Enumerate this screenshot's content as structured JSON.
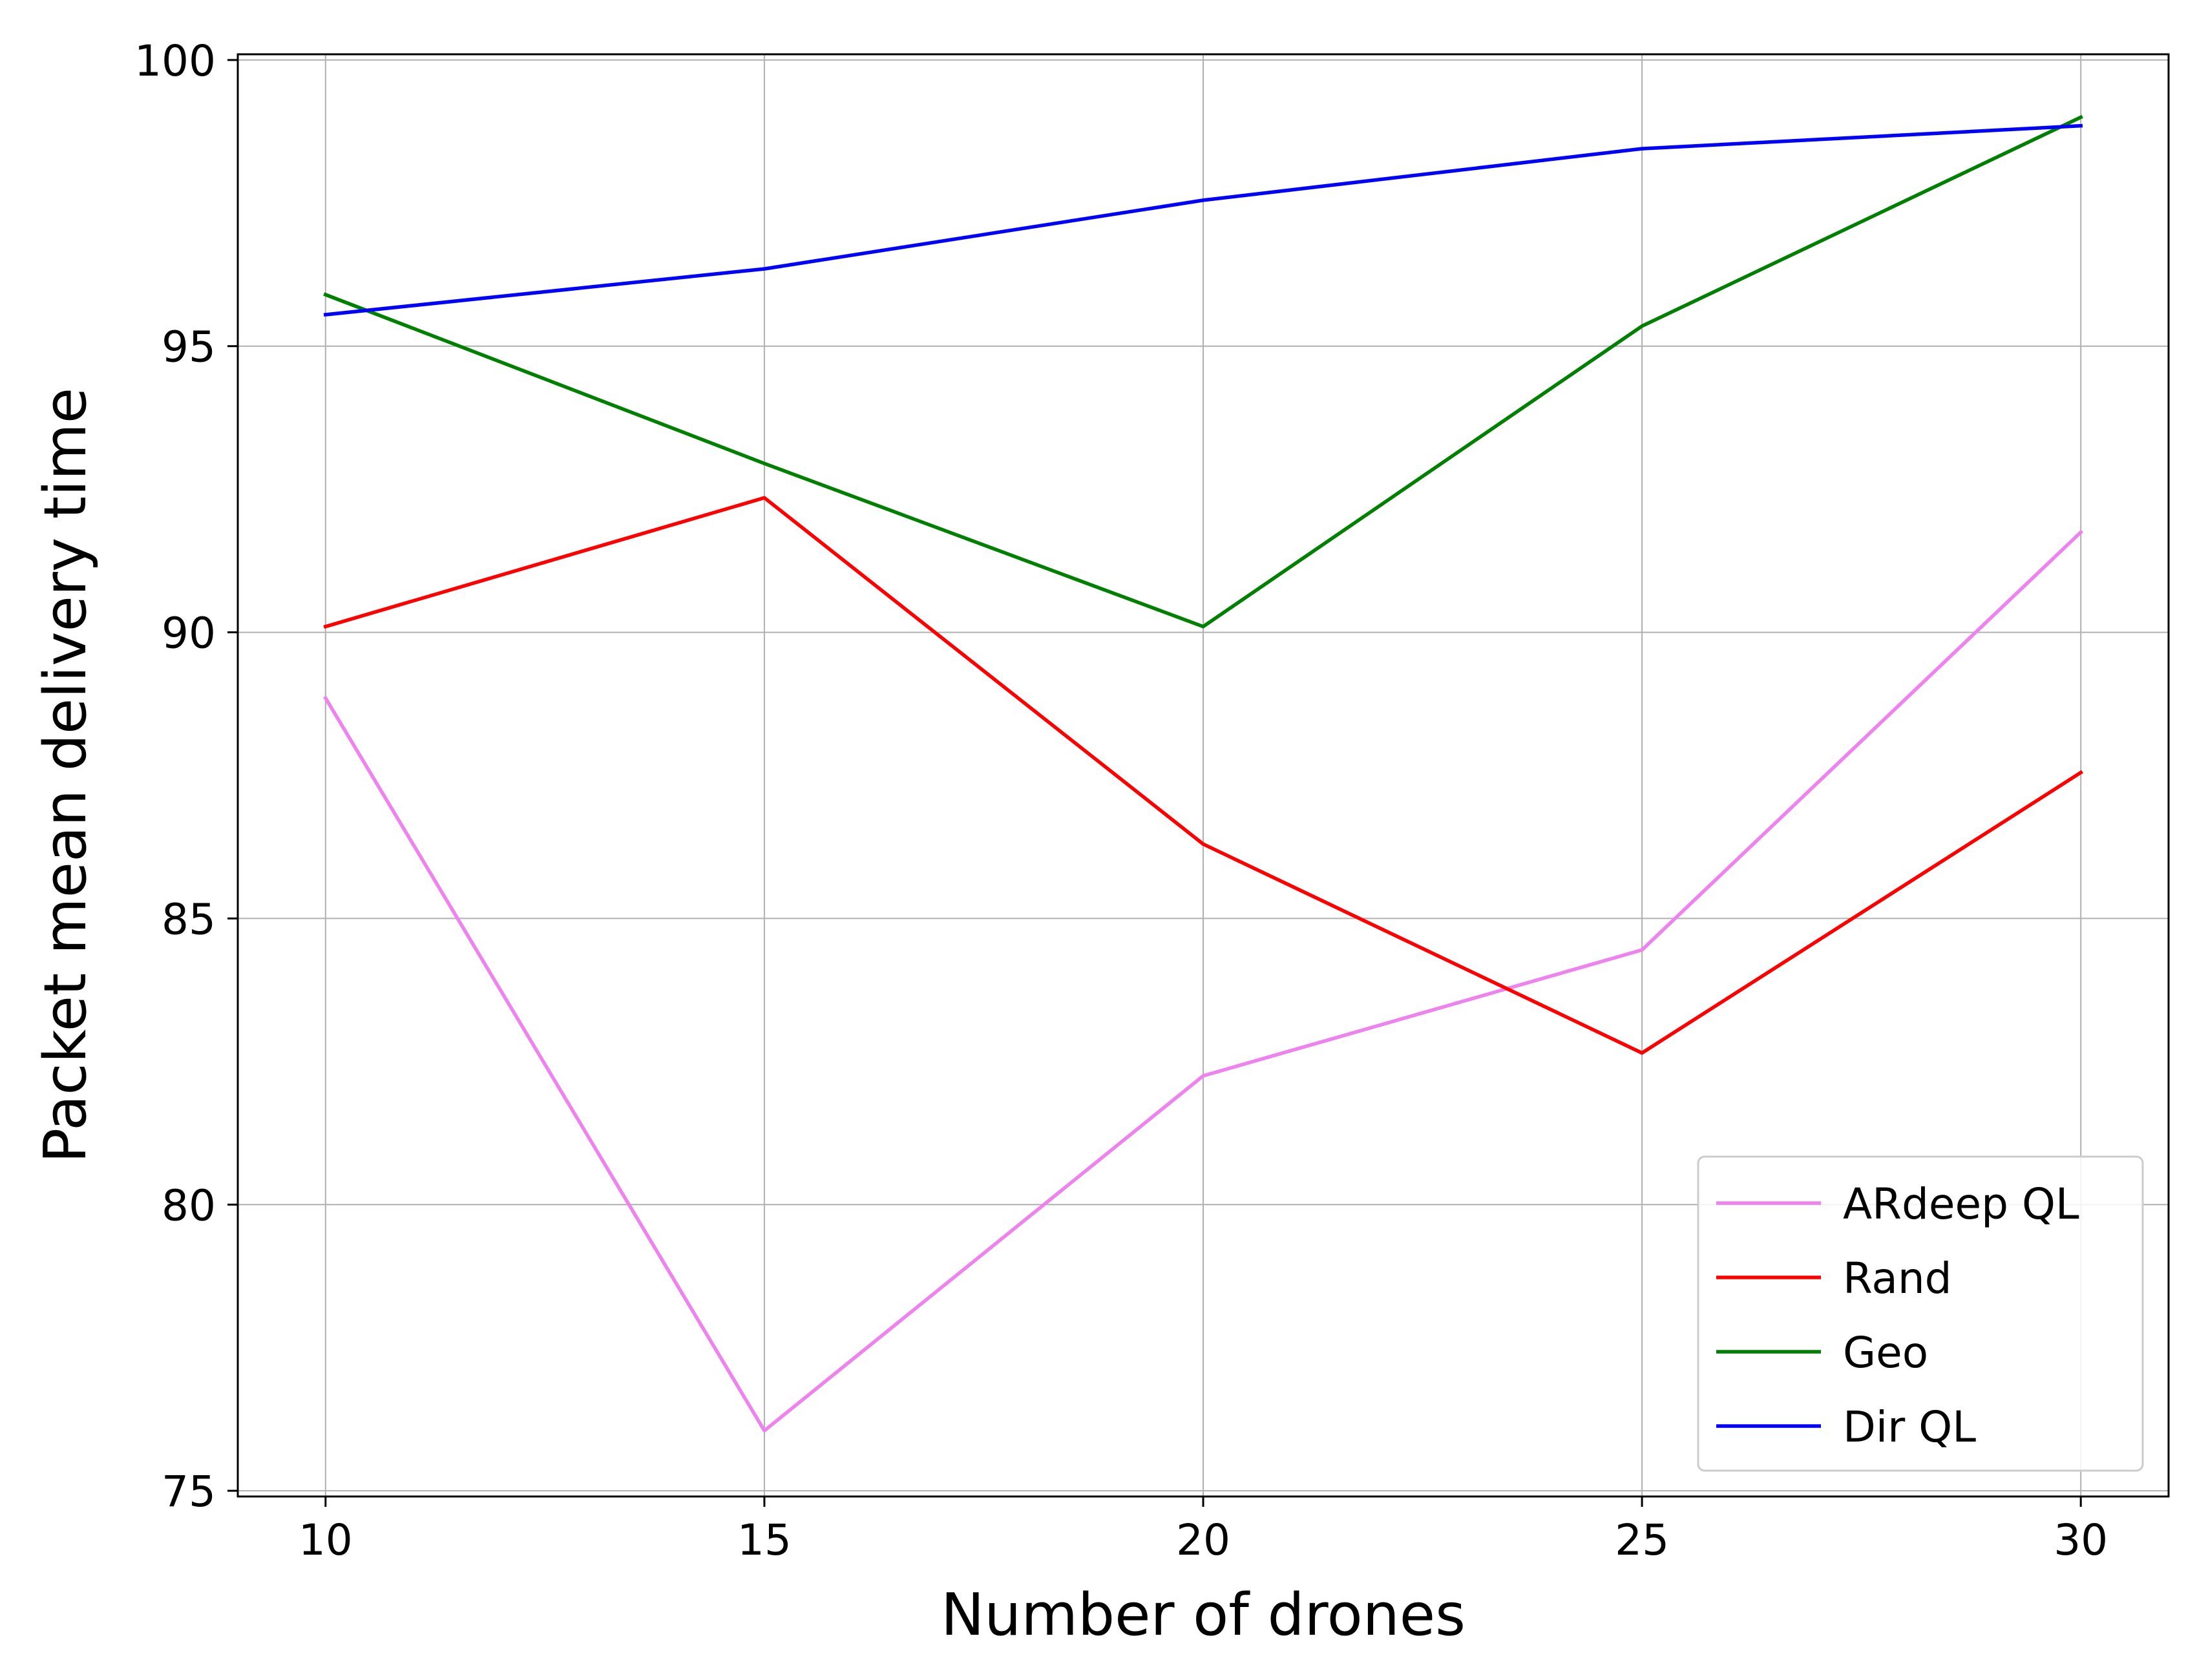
{
  "chart_data": {
    "type": "line",
    "title": "",
    "xlabel": "Number of drones",
    "ylabel": "Packet mean delivery time",
    "x": [
      10,
      15,
      20,
      25,
      30
    ],
    "x_ticks": [
      "10",
      "15",
      "20",
      "25",
      "30"
    ],
    "y_ticks": [
      "75",
      "80",
      "85",
      "90",
      "95",
      "100"
    ],
    "xlim": [
      9,
      31
    ],
    "ylim": [
      74.9,
      100.1
    ],
    "grid": true,
    "legend_position": "lower-right",
    "series": [
      {
        "name": "ARdeep QL",
        "color": "#ee82ee",
        "values": [
          88.85,
          76.05,
          82.25,
          84.45,
          91.75
        ]
      },
      {
        "name": "Rand",
        "color": "#ff0000",
        "values": [
          90.1,
          92.35,
          86.3,
          82.65,
          87.55
        ]
      },
      {
        "name": "Geo",
        "color": "#008000",
        "values": [
          95.9,
          92.95,
          90.1,
          95.35,
          99.0
        ]
      },
      {
        "name": "Dir QL",
        "color": "#0000ff",
        "values": [
          95.55,
          96.35,
          97.55,
          98.45,
          98.85
        ]
      }
    ]
  }
}
